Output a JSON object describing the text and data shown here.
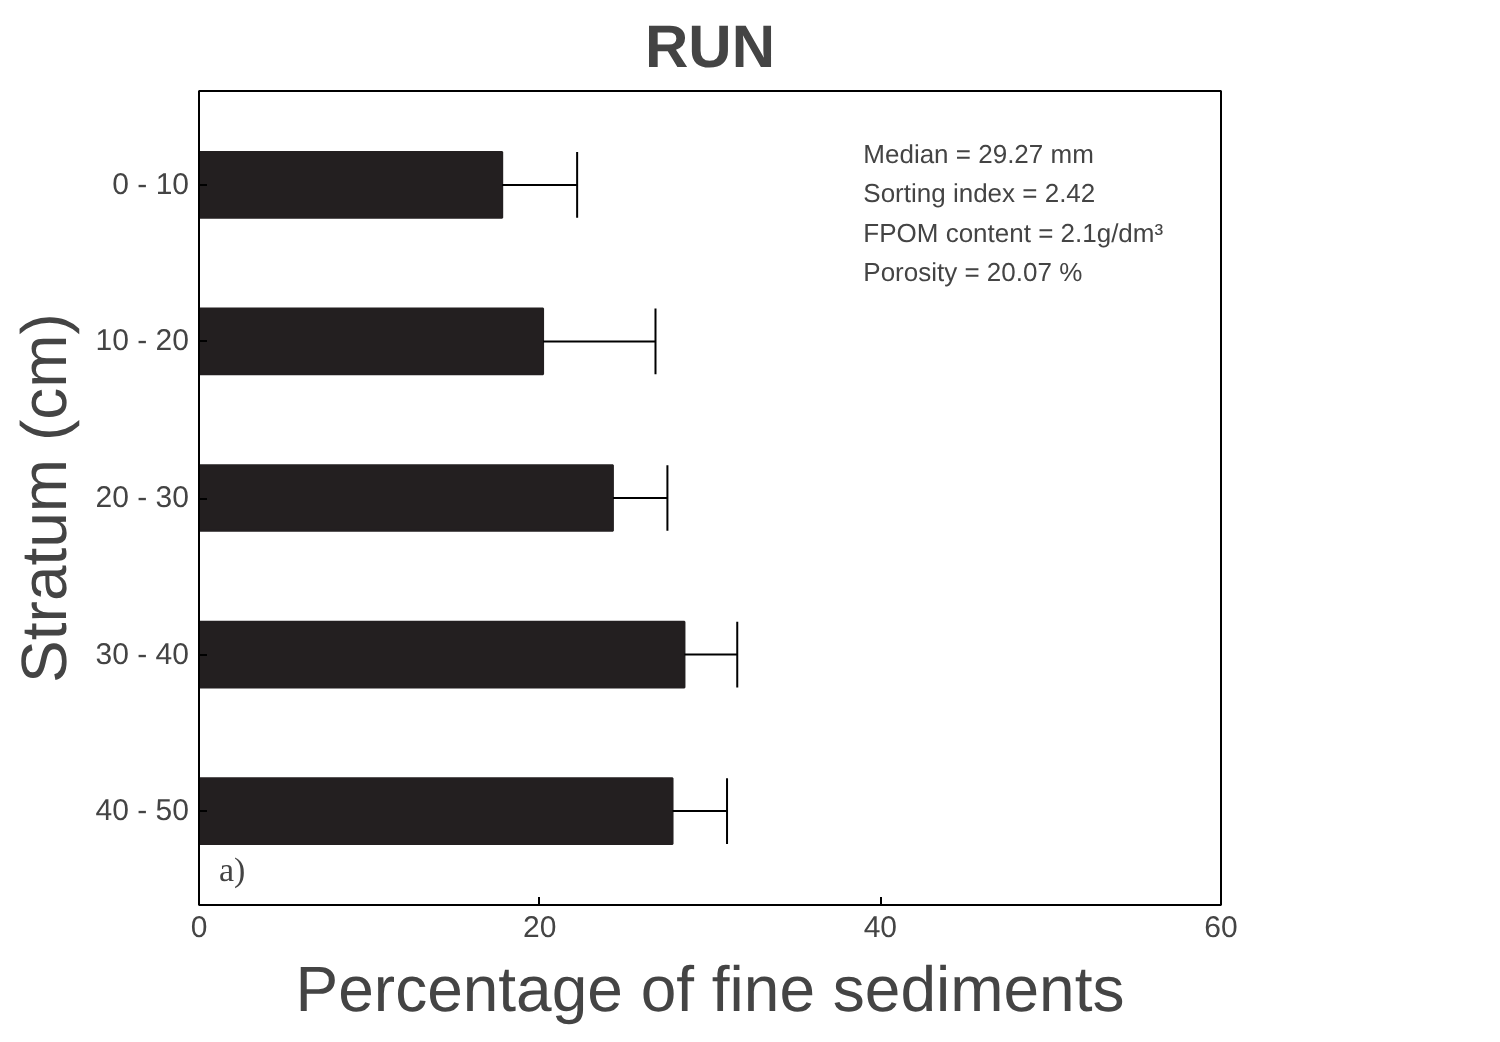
{
  "chart_data": {
    "type": "bar",
    "orientation": "horizontal",
    "title": "RUN",
    "xlabel": "Percentage of fine sediments",
    "ylabel": "Stratum (cm)",
    "categories": [
      "0 - 10",
      "10 - 20",
      "20 - 30",
      "30 - 40",
      "40 - 50"
    ],
    "values": [
      17.8,
      20.2,
      24.3,
      28.5,
      27.8
    ],
    "errors": [
      [
        17.8,
        22.2
      ],
      [
        20.2,
        26.8
      ],
      [
        24.3,
        27.5
      ],
      [
        28.5,
        31.6
      ],
      [
        27.8,
        31.0
      ]
    ],
    "color": "#231f20",
    "xlim": [
      0,
      60
    ],
    "xticks": [
      0,
      20,
      40,
      60
    ],
    "grid": false,
    "annotations": [
      "Median = 29.27 mm",
      "Sorting index = 2.42",
      "FPOM content = 2.1g/dm³",
      "Porosity = 20.07 %",
      "a)"
    ]
  }
}
